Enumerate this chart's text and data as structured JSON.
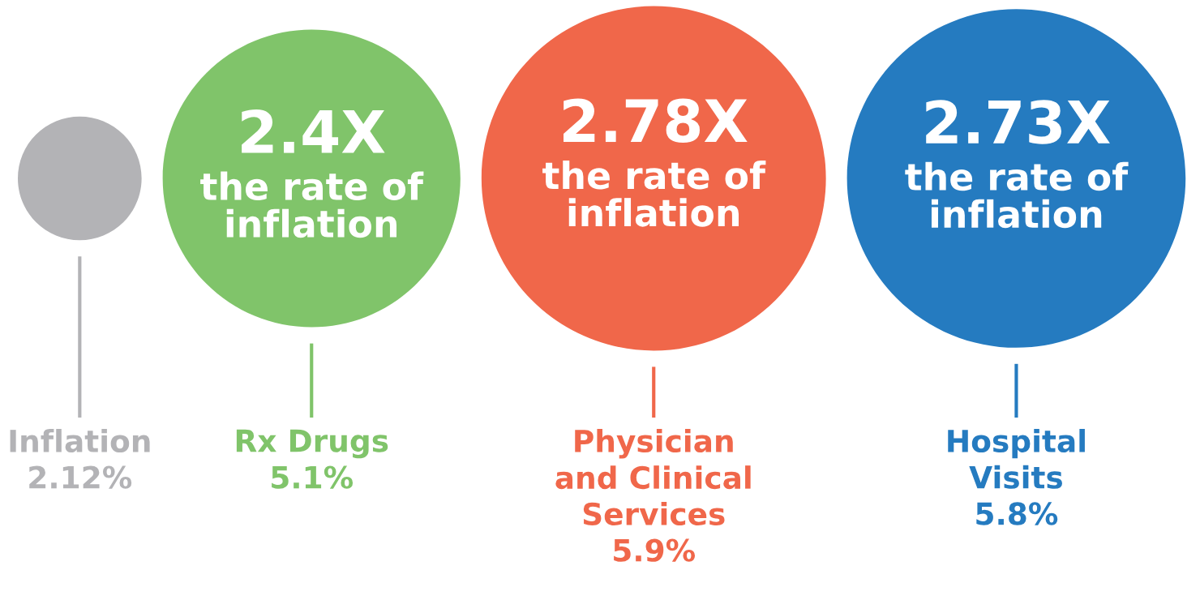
{
  "chart_data": {
    "type": "other",
    "categories": [
      "Inflation",
      "Rx Drugs",
      "Physician\nand Clinical\nServices",
      "Hospital\nVisits"
    ],
    "values": [
      2.12,
      5.1,
      5.9,
      5.8
    ],
    "value_labels": [
      "2.12%",
      "5.1%",
      "5.9%",
      "5.8%"
    ],
    "colors": [
      "#b3b3b6",
      "#80c46a",
      "#f0674a",
      "#257bc0"
    ],
    "annotations": [
      {
        "text": "2.4X",
        "x": "Rx Drugs"
      },
      {
        "text": "the rate of\ninflation",
        "x": "Rx Drugs"
      },
      {
        "text": "2.78X",
        "x": "Physician\nand Clinical\nServices"
      },
      {
        "text": "the rate of\ninflation",
        "x": "Physician\nand Clinical\nServices"
      },
      {
        "text": "2.73X",
        "x": "Hospital\nVisits"
      },
      {
        "text": "the rate of\ninflation",
        "x": "Hospital\nVisits"
      }
    ]
  }
}
